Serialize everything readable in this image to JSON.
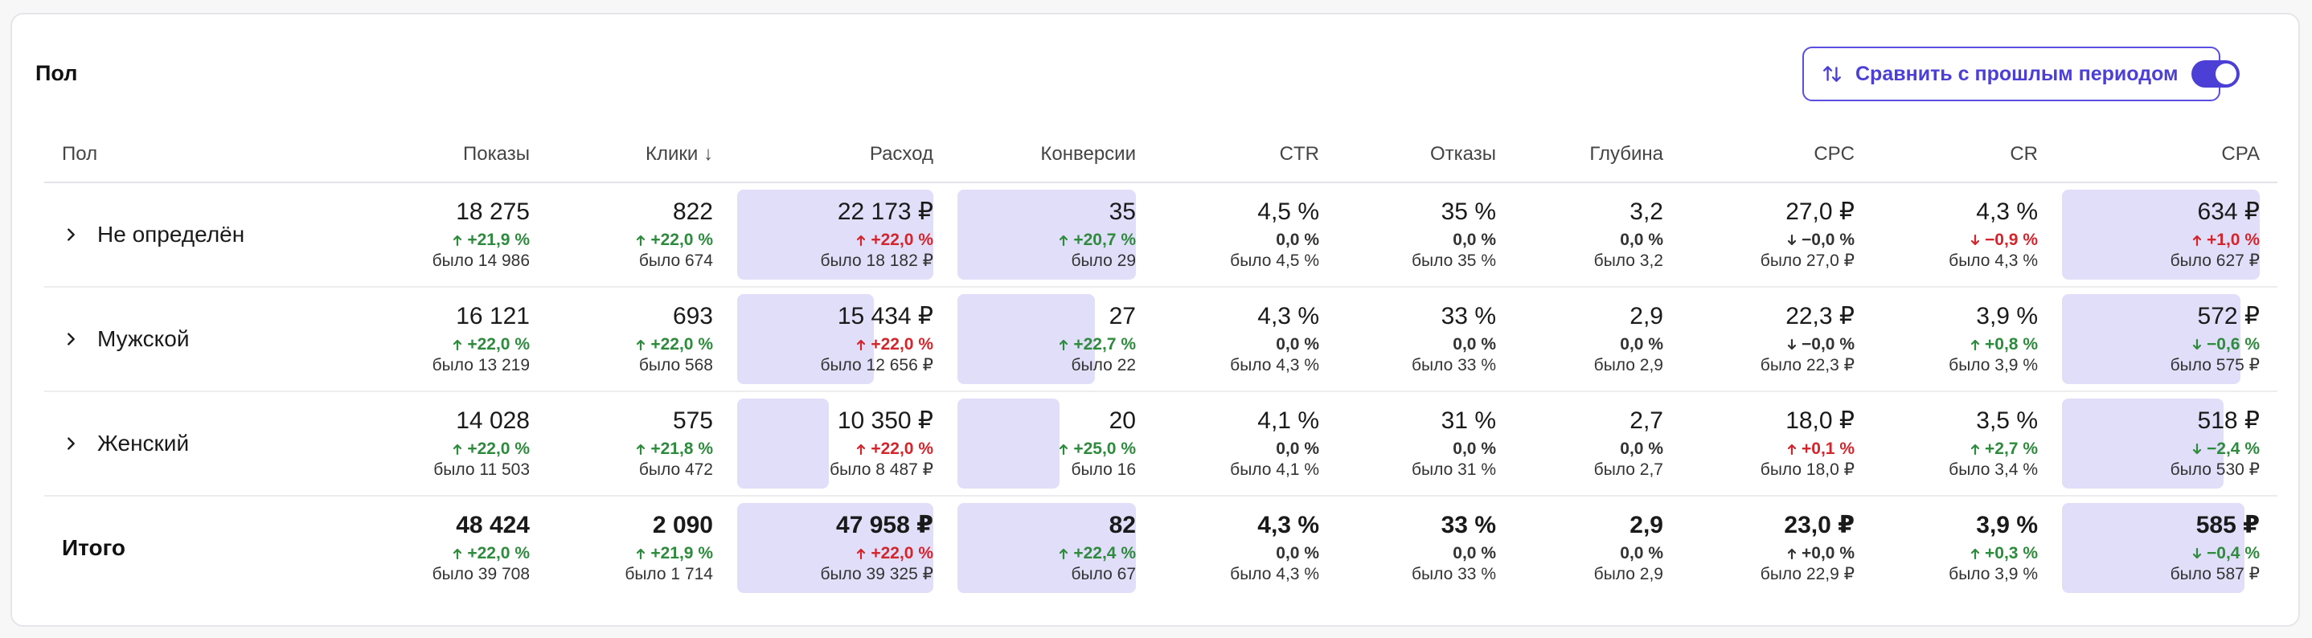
{
  "section_title": "Пол",
  "compare": {
    "label": "Сравнить с прошлым периодом",
    "enabled": true
  },
  "colors": {
    "accent": "#4b3fd6",
    "bar": "#e1def9",
    "positive": "#2e8b3e",
    "negative": "#d3252c"
  },
  "columns": [
    {
      "key": "gender",
      "label": "Пол"
    },
    {
      "key": "shows",
      "label": "Показы"
    },
    {
      "key": "clicks",
      "label": "Клики ↓"
    },
    {
      "key": "spend",
      "label": "Расход"
    },
    {
      "key": "conv",
      "label": "Конверсии"
    },
    {
      "key": "ctr",
      "label": "CTR"
    },
    {
      "key": "bounce",
      "label": "Отказы"
    },
    {
      "key": "depth",
      "label": "Глубина"
    },
    {
      "key": "cpc",
      "label": "CPC"
    },
    {
      "key": "cr",
      "label": "CR"
    },
    {
      "key": "cpa",
      "label": "CPA"
    }
  ],
  "rows": [
    {
      "label": "Не определён",
      "shows": {
        "value": "18 275",
        "delta": "+21,9 %",
        "dir": "up",
        "tone": "good",
        "was": "было 14 986"
      },
      "clicks": {
        "value": "822",
        "delta": "+22,0 %",
        "dir": "up",
        "tone": "good",
        "was": "было 674"
      },
      "spend": {
        "value": "22 173 ₽",
        "delta": "+22,0 %",
        "dir": "up",
        "tone": "bad",
        "was": "было 18 182 ₽",
        "bar": 1.0
      },
      "conv": {
        "value": "35",
        "delta": "+20,7 %",
        "dir": "up",
        "tone": "good",
        "was": "было 29",
        "bar": 1.0
      },
      "ctr": {
        "value": "4,5 %",
        "delta": "0,0 %",
        "dir": "none",
        "tone": "neutral",
        "was": "было 4,5 %"
      },
      "bounce": {
        "value": "35 %",
        "delta": "0,0 %",
        "dir": "none",
        "tone": "neutral",
        "was": "было 35 %"
      },
      "depth": {
        "value": "3,2",
        "delta": "0,0 %",
        "dir": "none",
        "tone": "neutral",
        "was": "было 3,2"
      },
      "cpc": {
        "value": "27,0 ₽",
        "delta": "−0,0 %",
        "dir": "down",
        "tone": "neutral",
        "was": "было 27,0 ₽"
      },
      "cr": {
        "value": "4,3 %",
        "delta": "−0,9 %",
        "dir": "down",
        "tone": "bad",
        "was": "было 4,3 %"
      },
      "cpa": {
        "value": "634 ₽",
        "delta": "+1,0 %",
        "dir": "up",
        "tone": "bad",
        "was": "было 627 ₽",
        "bar": 1.0
      }
    },
    {
      "label": "Мужской",
      "shows": {
        "value": "16 121",
        "delta": "+22,0 %",
        "dir": "up",
        "tone": "good",
        "was": "было 13 219"
      },
      "clicks": {
        "value": "693",
        "delta": "+22,0 %",
        "dir": "up",
        "tone": "good",
        "was": "было 568"
      },
      "spend": {
        "value": "15 434 ₽",
        "delta": "+22,0 %",
        "dir": "up",
        "tone": "bad",
        "was": "было 12 656 ₽",
        "bar": 0.696
      },
      "conv": {
        "value": "27",
        "delta": "+22,7 %",
        "dir": "up",
        "tone": "good",
        "was": "было 22",
        "bar": 0.771
      },
      "ctr": {
        "value": "4,3 %",
        "delta": "0,0 %",
        "dir": "none",
        "tone": "neutral",
        "was": "было 4,3 %"
      },
      "bounce": {
        "value": "33 %",
        "delta": "0,0 %",
        "dir": "none",
        "tone": "neutral",
        "was": "было 33 %"
      },
      "depth": {
        "value": "2,9",
        "delta": "0,0 %",
        "dir": "none",
        "tone": "neutral",
        "was": "было 2,9"
      },
      "cpc": {
        "value": "22,3 ₽",
        "delta": "−0,0 %",
        "dir": "down",
        "tone": "neutral",
        "was": "было 22,3 ₽"
      },
      "cr": {
        "value": "3,9 %",
        "delta": "+0,8 %",
        "dir": "up",
        "tone": "good",
        "was": "было 3,9 %"
      },
      "cpa": {
        "value": "572 ₽",
        "delta": "−0,6 %",
        "dir": "down",
        "tone": "good",
        "was": "было 575 ₽",
        "bar": 0.902
      }
    },
    {
      "label": "Женский",
      "shows": {
        "value": "14 028",
        "delta": "+22,0 %",
        "dir": "up",
        "tone": "good",
        "was": "было 11 503"
      },
      "clicks": {
        "value": "575",
        "delta": "+21,8 %",
        "dir": "up",
        "tone": "good",
        "was": "было 472"
      },
      "spend": {
        "value": "10 350 ₽",
        "delta": "+22,0 %",
        "dir": "up",
        "tone": "bad",
        "was": "было 8 487 ₽",
        "bar": 0.467
      },
      "conv": {
        "value": "20",
        "delta": "+25,0 %",
        "dir": "up",
        "tone": "good",
        "was": "было 16",
        "bar": 0.571
      },
      "ctr": {
        "value": "4,1 %",
        "delta": "0,0 %",
        "dir": "none",
        "tone": "neutral",
        "was": "было 4,1 %"
      },
      "bounce": {
        "value": "31 %",
        "delta": "0,0 %",
        "dir": "none",
        "tone": "neutral",
        "was": "было 31 %"
      },
      "depth": {
        "value": "2,7",
        "delta": "0,0 %",
        "dir": "none",
        "tone": "neutral",
        "was": "было 2,7"
      },
      "cpc": {
        "value": "18,0 ₽",
        "delta": "+0,1 %",
        "dir": "up",
        "tone": "bad",
        "was": "было 18,0 ₽"
      },
      "cr": {
        "value": "3,5 %",
        "delta": "+2,7 %",
        "dir": "up",
        "tone": "good",
        "was": "было 3,4 %"
      },
      "cpa": {
        "value": "518 ₽",
        "delta": "−2,4 %",
        "dir": "down",
        "tone": "good",
        "was": "было 530 ₽",
        "bar": 0.817
      }
    }
  ],
  "total": {
    "label": "Итого",
    "shows": {
      "value": "48 424",
      "delta": "+22,0 %",
      "dir": "up",
      "tone": "good",
      "was": "было 39 708"
    },
    "clicks": {
      "value": "2 090",
      "delta": "+21,9 %",
      "dir": "up",
      "tone": "good",
      "was": "было 1 714"
    },
    "spend": {
      "value": "47 958 ₽",
      "delta": "+22,0 %",
      "dir": "up",
      "tone": "bad",
      "was": "было 39 325 ₽",
      "bar": 1.0
    },
    "conv": {
      "value": "82",
      "delta": "+22,4 %",
      "dir": "up",
      "tone": "good",
      "was": "было 67",
      "bar": 1.0
    },
    "ctr": {
      "value": "4,3 %",
      "delta": "0,0 %",
      "dir": "none",
      "tone": "neutral",
      "was": "было 4,3 %"
    },
    "bounce": {
      "value": "33 %",
      "delta": "0,0 %",
      "dir": "none",
      "tone": "neutral",
      "was": "было 33 %"
    },
    "depth": {
      "value": "2,9",
      "delta": "0,0 %",
      "dir": "none",
      "tone": "neutral",
      "was": "было 2,9"
    },
    "cpc": {
      "value": "23,0 ₽",
      "delta": "+0,0 %",
      "dir": "up",
      "tone": "neutral",
      "was": "было 22,9 ₽"
    },
    "cr": {
      "value": "3,9 %",
      "delta": "+0,3 %",
      "dir": "up",
      "tone": "good",
      "was": "было 3,9 %"
    },
    "cpa": {
      "value": "585 ₽",
      "delta": "−0,4 %",
      "dir": "down",
      "tone": "good",
      "was": "было 587 ₽",
      "bar": 0.923
    }
  }
}
